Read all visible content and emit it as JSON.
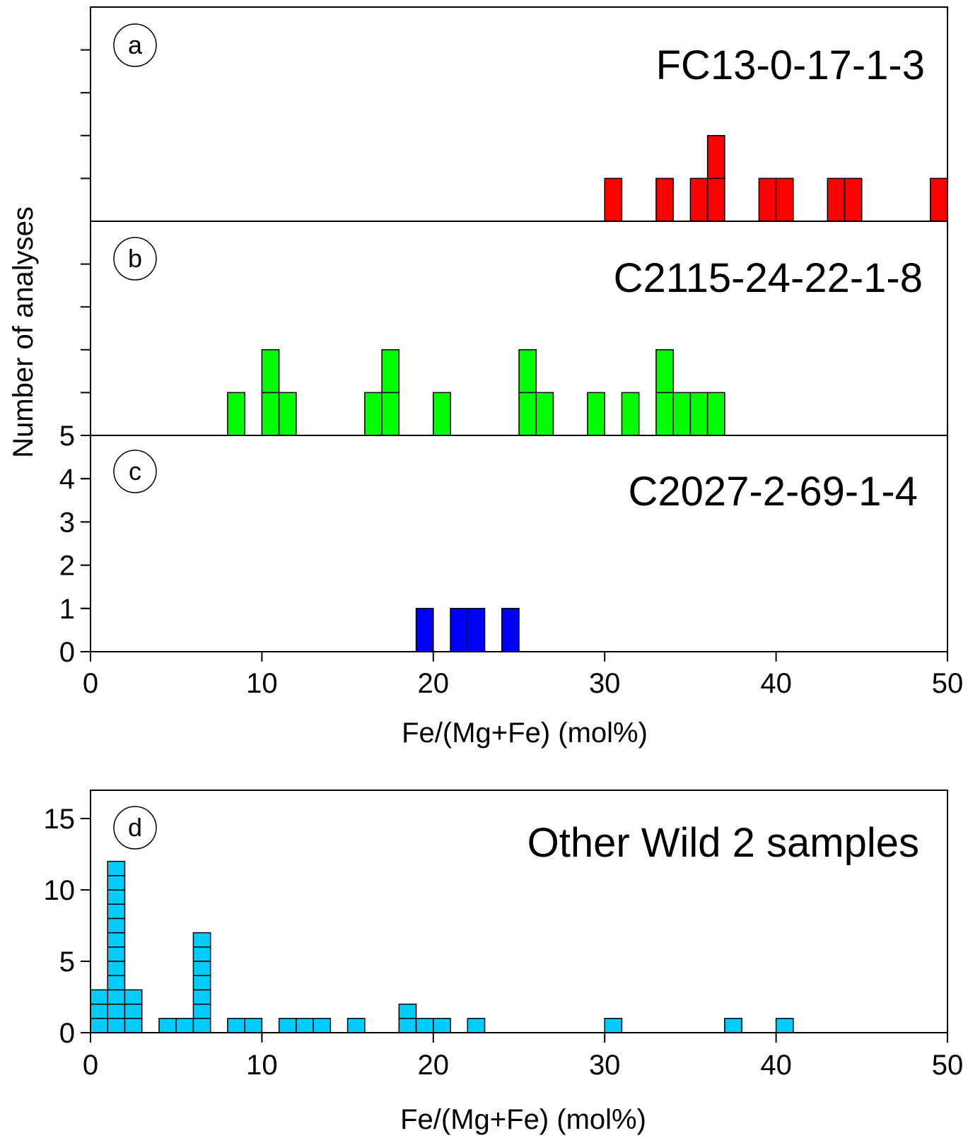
{
  "figure": {
    "ylabel": "Number of analyses",
    "xlabel_top": "Fe/(Mg+Fe) (mol%)",
    "xlabel_bottom": "Fe/(Mg+Fe) (mol%)"
  },
  "chart_data": [
    {
      "type": "histogram",
      "panel": "a",
      "sample": "FC13-0-17-1-3",
      "color": "#ff0000",
      "bin_width": 1,
      "bins": [
        {
          "x": 30.5,
          "count": 1
        },
        {
          "x": 33.5,
          "count": 1
        },
        {
          "x": 35.5,
          "count": 1
        },
        {
          "x": 36.5,
          "count": 2
        },
        {
          "x": 39.5,
          "count": 1
        },
        {
          "x": 40.5,
          "count": 1
        },
        {
          "x": 43.5,
          "count": 1
        },
        {
          "x": 44.5,
          "count": 1
        },
        {
          "x": 49.5,
          "count": 1
        }
      ],
      "xlim": [
        0,
        50
      ],
      "ylim": [
        0,
        5
      ]
    },
    {
      "type": "histogram",
      "panel": "b",
      "sample": "C2115-24-22-1-8",
      "color": "#00ff00",
      "bin_width": 1,
      "bins": [
        {
          "x": 8.5,
          "count": 1
        },
        {
          "x": 10.5,
          "count": 2
        },
        {
          "x": 11.5,
          "count": 1
        },
        {
          "x": 16.5,
          "count": 1
        },
        {
          "x": 17.5,
          "count": 2
        },
        {
          "x": 20.5,
          "count": 1
        },
        {
          "x": 25.5,
          "count": 2
        },
        {
          "x": 26.5,
          "count": 1
        },
        {
          "x": 29.5,
          "count": 1
        },
        {
          "x": 31.5,
          "count": 1
        },
        {
          "x": 33.5,
          "count": 2
        },
        {
          "x": 34.5,
          "count": 1
        },
        {
          "x": 35.5,
          "count": 1
        },
        {
          "x": 36.5,
          "count": 1
        }
      ],
      "xlim": [
        0,
        50
      ],
      "ylim": [
        0,
        5
      ]
    },
    {
      "type": "histogram",
      "panel": "c",
      "sample": "C2027-2-69-1-4",
      "color": "#0000ff",
      "bin_width": 1,
      "bins": [
        {
          "x": 19.5,
          "count": 1
        },
        {
          "x": 21.5,
          "count": 1
        },
        {
          "x": 22.5,
          "count": 1
        },
        {
          "x": 24.5,
          "count": 1
        }
      ],
      "xlim": [
        0,
        50
      ],
      "ylim": [
        0,
        5
      ],
      "yticks": [
        "0",
        "1",
        "2",
        "3",
        "4",
        "5"
      ],
      "xticks": [
        "0",
        "10",
        "20",
        "30",
        "40",
        "50"
      ]
    },
    {
      "type": "histogram",
      "panel": "d",
      "sample": "Other Wild 2 samples",
      "color": "#00ccff",
      "bin_width": 1,
      "bins": [
        {
          "x": 0.5,
          "count": 3
        },
        {
          "x": 1.5,
          "count": 12
        },
        {
          "x": 2.5,
          "count": 3
        },
        {
          "x": 4.5,
          "count": 1
        },
        {
          "x": 5.5,
          "count": 1
        },
        {
          "x": 6.5,
          "count": 7
        },
        {
          "x": 8.5,
          "count": 1
        },
        {
          "x": 9.5,
          "count": 1
        },
        {
          "x": 11.5,
          "count": 1
        },
        {
          "x": 12.5,
          "count": 1
        },
        {
          "x": 13.5,
          "count": 1
        },
        {
          "x": 15.5,
          "count": 1
        },
        {
          "x": 18.5,
          "count": 2
        },
        {
          "x": 19.5,
          "count": 1
        },
        {
          "x": 20.5,
          "count": 1
        },
        {
          "x": 22.5,
          "count": 1
        },
        {
          "x": 30.5,
          "count": 1
        },
        {
          "x": 37.5,
          "count": 1
        },
        {
          "x": 40.5,
          "count": 1
        }
      ],
      "xlim": [
        0,
        50
      ],
      "ylim": [
        0,
        17
      ],
      "yticks": [
        "0",
        "5",
        "10",
        "15"
      ],
      "xticks": [
        "0",
        "10",
        "20",
        "30",
        "40",
        "50"
      ]
    }
  ]
}
